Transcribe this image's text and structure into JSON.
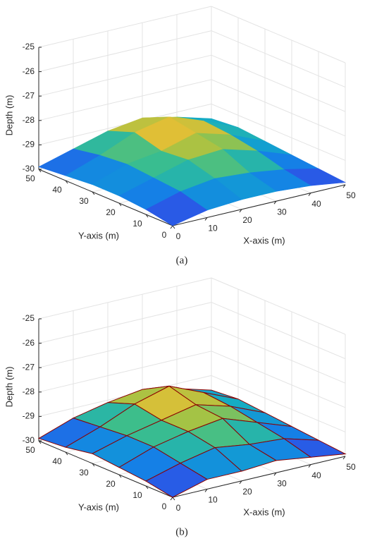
{
  "chart_data": [
    {
      "type": "surface",
      "caption": "(a)",
      "xlabel": "X-axis (m)",
      "ylabel": "Y-axis (m)",
      "zlabel": "Depth (m)",
      "x": [
        0,
        10,
        20,
        30,
        40,
        50
      ],
      "y": [
        0,
        10,
        20,
        30,
        40,
        50
      ],
      "z": [
        [
          -30,
          -29.7,
          -29.6,
          -29.6,
          -29.7,
          -29.9
        ],
        [
          -29.8,
          -29.4,
          -29.2,
          -29.3,
          -29.5,
          -29.8
        ],
        [
          -29.7,
          -29.3,
          -28.9,
          -28.8,
          -29.2,
          -29.7
        ],
        [
          -29.7,
          -29.2,
          -29.0,
          -28.6,
          -29.0,
          -29.6
        ],
        [
          -29.8,
          -29.3,
          -28.7,
          -28.4,
          -28.9,
          -29.5
        ],
        [
          -29.9,
          -29.5,
          -29.1,
          -28.9,
          -29.2,
          -29.6
        ]
      ],
      "xlim": [
        0,
        50
      ],
      "ylim": [
        0,
        50
      ],
      "zlim": [
        -30,
        -25
      ],
      "xticks": [
        0,
        10,
        20,
        30,
        40,
        50
      ],
      "yticks": [
        0,
        10,
        20,
        30,
        40,
        50
      ],
      "zticks": [
        -30,
        -29,
        -28,
        -27,
        -26,
        -25
      ],
      "grid": true,
      "colormap": "parula",
      "edgecolor": "none"
    },
    {
      "type": "surface",
      "caption": "(b)",
      "xlabel": "X-axis (m)",
      "ylabel": "Y-axis (m)",
      "zlabel": "Depth (m)",
      "x": [
        0,
        10,
        20,
        30,
        40,
        50
      ],
      "y": [
        0,
        10,
        20,
        30,
        40,
        50
      ],
      "z": [
        [
          -30,
          -29.6,
          -29.6,
          -29.5,
          -29.7,
          -29.9
        ],
        [
          -29.8,
          -29.4,
          -29.1,
          -29.3,
          -29.4,
          -29.8
        ],
        [
          -29.7,
          -29.2,
          -28.9,
          -28.7,
          -29.2,
          -29.7
        ],
        [
          -29.6,
          -29.2,
          -28.9,
          -28.6,
          -29.0,
          -29.6
        ],
        [
          -29.8,
          -29.3,
          -28.7,
          -28.3,
          -28.9,
          -29.5
        ],
        [
          -29.9,
          -29.4,
          -29.1,
          -28.9,
          -29.2,
          -29.6
        ]
      ],
      "xlim": [
        0,
        50
      ],
      "ylim": [
        0,
        50
      ],
      "zlim": [
        -30,
        -25
      ],
      "xticks": [
        0,
        10,
        20,
        30,
        40,
        50
      ],
      "yticks": [
        0,
        10,
        20,
        30,
        40,
        50
      ],
      "zticks": [
        -30,
        -29,
        -28,
        -27,
        -26,
        -25
      ],
      "grid": true,
      "colormap": "parula",
      "edgecolor": "#8b0000"
    }
  ]
}
